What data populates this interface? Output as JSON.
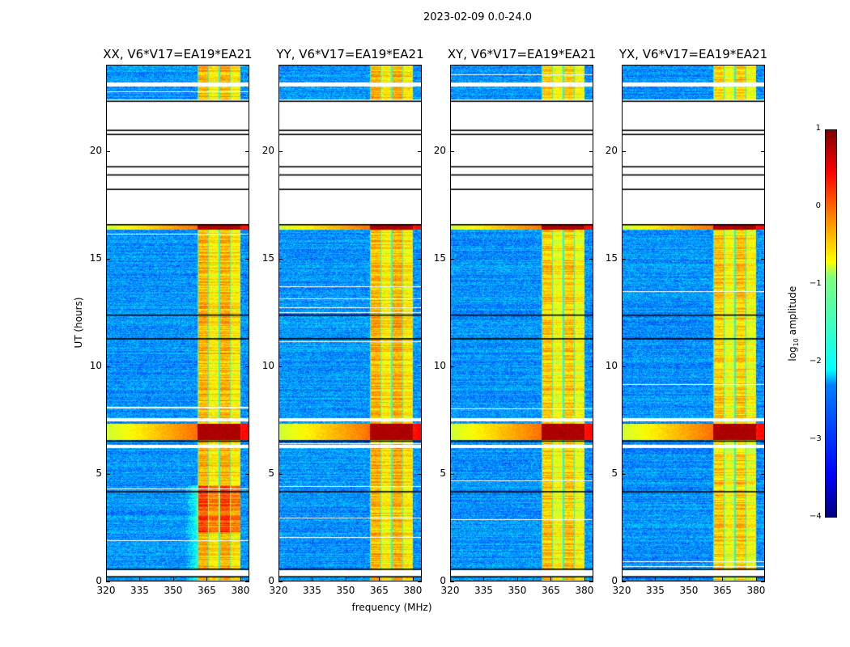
{
  "suptitle": "2023-02-09 0.0-24.0",
  "chart_data": {
    "type": "heatmap",
    "xlabel": "frequency (MHz)",
    "ylabel": "UT (hours)",
    "xlim": [
      320,
      384
    ],
    "ylim": [
      0,
      24
    ],
    "xticks": [
      "320",
      "335",
      "350",
      "365",
      "380"
    ],
    "xtick_values": [
      320,
      335,
      350,
      365,
      380
    ],
    "yticks": [
      "0",
      "5",
      "10",
      "15",
      "20"
    ],
    "ytick_values": [
      0,
      5,
      10,
      15,
      20
    ],
    "panels": [
      {
        "title": "XX, V6*V17=EA19*EA21"
      },
      {
        "title": "YY, V6*V17=EA19*EA21"
      },
      {
        "title": "XY, V6*V17=EA19*EA21"
      },
      {
        "title": "YX, V6*V17=EA19*EA21"
      }
    ],
    "strong_band_mhz": [
      360.5,
      380
    ],
    "flagged_hours": [
      [
        16.62,
        22.4
      ],
      [
        0.25,
        0.55
      ],
      [
        23.0,
        23.2
      ],
      [
        6.2,
        6.35
      ],
      [
        7.45,
        7.6
      ]
    ],
    "bright_hours": [
      [
        16.35,
        16.62
      ],
      [
        6.6,
        7.35
      ]
    ],
    "colorbar": {
      "label": "log10 amplitude",
      "label_base": "log",
      "label_sub": "10",
      "label_rest": " amplitude",
      "ticks": [
        "1",
        "0",
        "−1",
        "−2",
        "−3",
        "−4"
      ],
      "tick_values": [
        1,
        0,
        -1,
        -2,
        -3,
        -4
      ],
      "range": [
        -4,
        1
      ],
      "colormap": "jet"
    }
  }
}
